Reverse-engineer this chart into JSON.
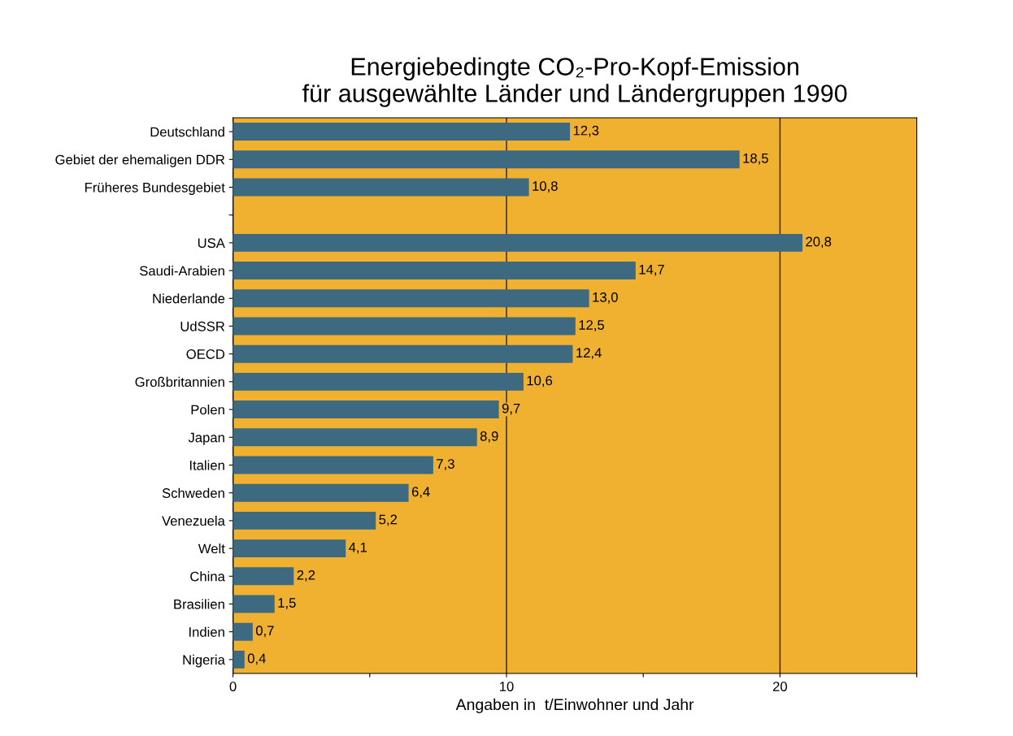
{
  "chart_data": {
    "type": "bar",
    "orientation": "horizontal",
    "title": "Energiebedingte CO₂-Pro-Kopf-Emission\nfür ausgewählte Länder und Ländergruppen 1990",
    "xlabel": "Angaben in  t/Einwohner und Jahr",
    "categories": [
      "Deutschland",
      "Gebiet der ehemaligen DDR",
      "Früheres Bundesgebiet",
      null,
      "USA",
      "Saudi-Arabien",
      "Niederlande",
      "UdSSR",
      "OECD",
      "Großbritannien",
      "Polen",
      "Japan",
      "Italien",
      "Schweden",
      "Venezuela",
      "Welt",
      "China",
      "Brasilien",
      "Indien",
      "Nigeria"
    ],
    "values": [
      12.3,
      18.5,
      10.8,
      null,
      20.8,
      14.7,
      13.0,
      12.5,
      12.4,
      10.6,
      9.7,
      8.9,
      7.3,
      6.4,
      5.2,
      4.1,
      2.2,
      1.5,
      0.7,
      0.4
    ],
    "value_labels": [
      "12,3",
      "18,5",
      "10,8",
      null,
      "20,8",
      "14,7",
      "13,0",
      "12,5",
      "12,4",
      "10,6",
      "9,7",
      "8,9",
      "7,3",
      "6,4",
      "5,2",
      "4,1",
      "2,2",
      "1,5",
      "0,7",
      "0,4"
    ],
    "color": "#3d6a80",
    "xlim": [
      0,
      25
    ],
    "xticks": [
      0,
      {
        "value": 5,
        "label": null
      },
      10,
      {
        "value": 15,
        "label": null
      },
      20,
      {
        "value": 25,
        "label": null
      }
    ],
    "grid": "x"
  }
}
